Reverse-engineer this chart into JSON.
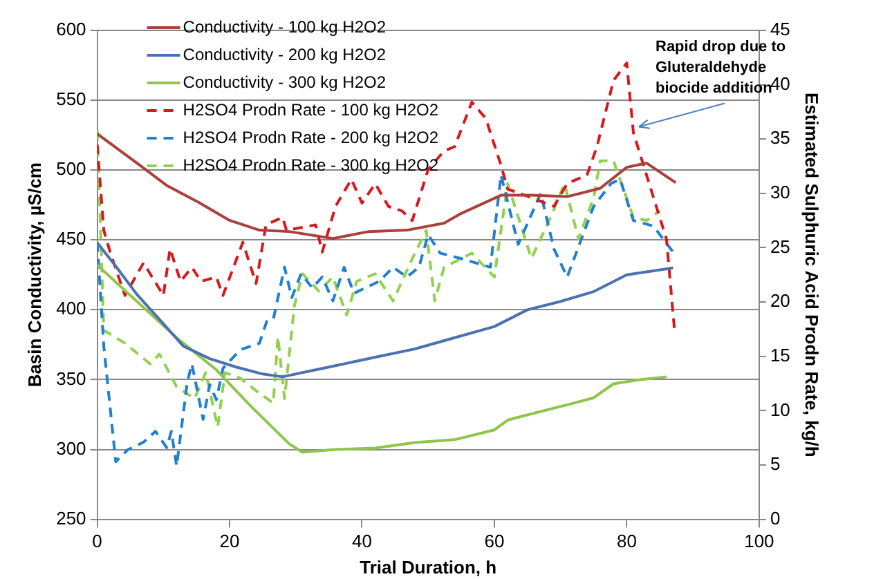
{
  "chart_data": {
    "type": "line",
    "xlabel": "Trial Duration, h",
    "ylabel": "Basin Conductivity, µS/cm",
    "y2label": "Estimated Sulphuric Acid Prodn Rate, kg/h",
    "xlim": [
      0,
      100
    ],
    "xticks": [
      0,
      20,
      40,
      60,
      80,
      100
    ],
    "ylim": [
      250,
      600
    ],
    "yticks": [
      250,
      300,
      350,
      400,
      450,
      500,
      550,
      600
    ],
    "y2lim": [
      0,
      45
    ],
    "y2ticks": [
      0,
      5,
      10,
      15,
      20,
      25,
      30,
      35,
      40,
      45
    ],
    "grid": "y",
    "legend": "top left",
    "marker": "none",
    "annotations": [
      {
        "text": "Rapid drop due to\nGluteraldehyde\nbiocide addition",
        "x": 81,
        "y": 529
      }
    ],
    "series": [
      {
        "name": "Conductivity - 100 kg H2O2",
        "color": "#a9413e",
        "line_style": "solid",
        "x": [
          0,
          6.3,
          10.5,
          15.3,
          20,
          24.5,
          29,
          35.6,
          41,
          46.8,
          52.4,
          55,
          61,
          65.6,
          71,
          76,
          80,
          83,
          87.4
        ],
        "values": [
          526,
          504,
          489,
          477,
          464,
          457,
          456,
          451,
          456,
          457,
          462,
          469,
          482,
          482,
          481,
          487,
          502,
          505,
          491
        ]
      },
      {
        "name": "Conductivity - 200 kg H2O2",
        "color": "#4a72b0",
        "line_style": "solid",
        "x": [
          0,
          3,
          6,
          10,
          13,
          17,
          21,
          25,
          28,
          31,
          35,
          42,
          48,
          54,
          60,
          65,
          70,
          75,
          80,
          87
        ],
        "values": [
          448,
          430,
          411,
          390,
          374,
          365,
          359,
          354,
          352,
          355,
          359,
          366,
          372,
          380,
          388,
          400,
          406,
          413,
          425,
          430
        ]
      },
      {
        "name": "Conductivity - 300 kg H2O2",
        "color": "#8fc54a",
        "line_style": "solid",
        "x": [
          0,
          6,
          12,
          18,
          23,
          29,
          31,
          36,
          42,
          48,
          54,
          60,
          62,
          66,
          71,
          75,
          78,
          82,
          86
        ],
        "values": [
          432,
          406,
          380,
          357,
          332,
          304,
          298,
          300,
          301,
          305,
          307,
          314,
          321,
          326,
          332,
          337,
          347,
          350,
          352
        ]
      },
      {
        "name": "H2SO4 Prodn Rate - 100 kg H2O2",
        "color": "#d7191c",
        "line_style": "dashed",
        "axis": "y2",
        "x": [
          0,
          1,
          2,
          4.2,
          7,
          10,
          11,
          12.6,
          14.3,
          15.7,
          18,
          19,
          22,
          24,
          25.5,
          28,
          28.6,
          33,
          34,
          36,
          38.4,
          40,
          42,
          44,
          46,
          47.6,
          50,
          52.4,
          54,
          56.6,
          58.7,
          61,
          62,
          65.6,
          69,
          71,
          74,
          75.5,
          78,
          80,
          81,
          84,
          86,
          87.2
        ],
        "values": [
          34.5,
          26.6,
          24.5,
          20.6,
          23.6,
          20.6,
          24.9,
          21.9,
          23.2,
          21.9,
          22.3,
          20.6,
          25.5,
          21.7,
          27.1,
          27.8,
          26.6,
          27.1,
          24.6,
          28.8,
          31.3,
          29.1,
          30.9,
          28.8,
          28.4,
          27.5,
          32.2,
          33.9,
          34.3,
          38.4,
          36.9,
          32.6,
          30.4,
          29.6,
          28.8,
          30.9,
          31.7,
          34.3,
          40.4,
          42,
          35.6,
          29.7,
          25.8,
          17.5
        ]
      },
      {
        "name": "H2SO4 Prodn Rate - 200 kg H2O2",
        "color": "#1f7fd0",
        "line_style": "dashed",
        "axis": "y2",
        "x": [
          0,
          1,
          2.8,
          4.6,
          7,
          8.8,
          10.5,
          11.2,
          12,
          13.6,
          14.3,
          16,
          17,
          18,
          19,
          21.6,
          24.5,
          25.6,
          26.6,
          28.3,
          29.4,
          30.8,
          32.5,
          34,
          35.6,
          37.3,
          38.8,
          40.5,
          42.6,
          44.7,
          46.8,
          48.6,
          50,
          51.8,
          55,
          59.4,
          61,
          63.6,
          67,
          69,
          71,
          75,
          77.6,
          79,
          81,
          84,
          87
        ],
        "values": [
          25.5,
          15.9,
          5.3,
          6.4,
          7.1,
          8.1,
          6.6,
          8.1,
          4.9,
          12.6,
          14.3,
          9.2,
          12.4,
          11,
          13.9,
          15.6,
          16.2,
          18.2,
          18.4,
          23.2,
          20.4,
          22.6,
          21.3,
          22.3,
          20.1,
          23.2,
          20.8,
          21.3,
          21.9,
          23.2,
          22.3,
          23.2,
          26.2,
          24.5,
          24,
          23.2,
          31.7,
          25.3,
          30,
          24.9,
          22.3,
          28.8,
          30.9,
          31.3,
          27.5,
          27,
          24.6
        ]
      },
      {
        "name": "H2SO4 Prodn Rate - 300 kg H2O2",
        "color": "#92d050",
        "line_style": "dashed",
        "axis": "y2",
        "x": [
          0,
          0.4,
          1,
          4.2,
          8,
          9.4,
          12,
          14.7,
          16.4,
          18.2,
          19.3,
          21.6,
          24.5,
          26.6,
          27.3,
          28.3,
          29.8,
          31,
          33.5,
          35.6,
          37.7,
          39.2,
          42,
          44.7,
          47.6,
          49.7,
          51,
          52.4,
          56.6,
          60,
          62,
          65.6,
          68.5,
          70.6,
          72.7,
          75,
          76,
          78,
          81,
          83,
          85
        ],
        "values": [
          35.8,
          28.7,
          17.4,
          16.2,
          14.3,
          15.2,
          12.2,
          11.1,
          13.5,
          8.5,
          13.5,
          13,
          11.6,
          10.7,
          16.8,
          11.1,
          19.7,
          22.6,
          21,
          22.3,
          18.8,
          21.9,
          22.6,
          20.1,
          24,
          26.6,
          20.1,
          23.2,
          24.5,
          22.3,
          30.9,
          24,
          27.8,
          30.9,
          25.8,
          29.6,
          33,
          33,
          27.8,
          27.5,
          28.4
        ]
      }
    ]
  }
}
